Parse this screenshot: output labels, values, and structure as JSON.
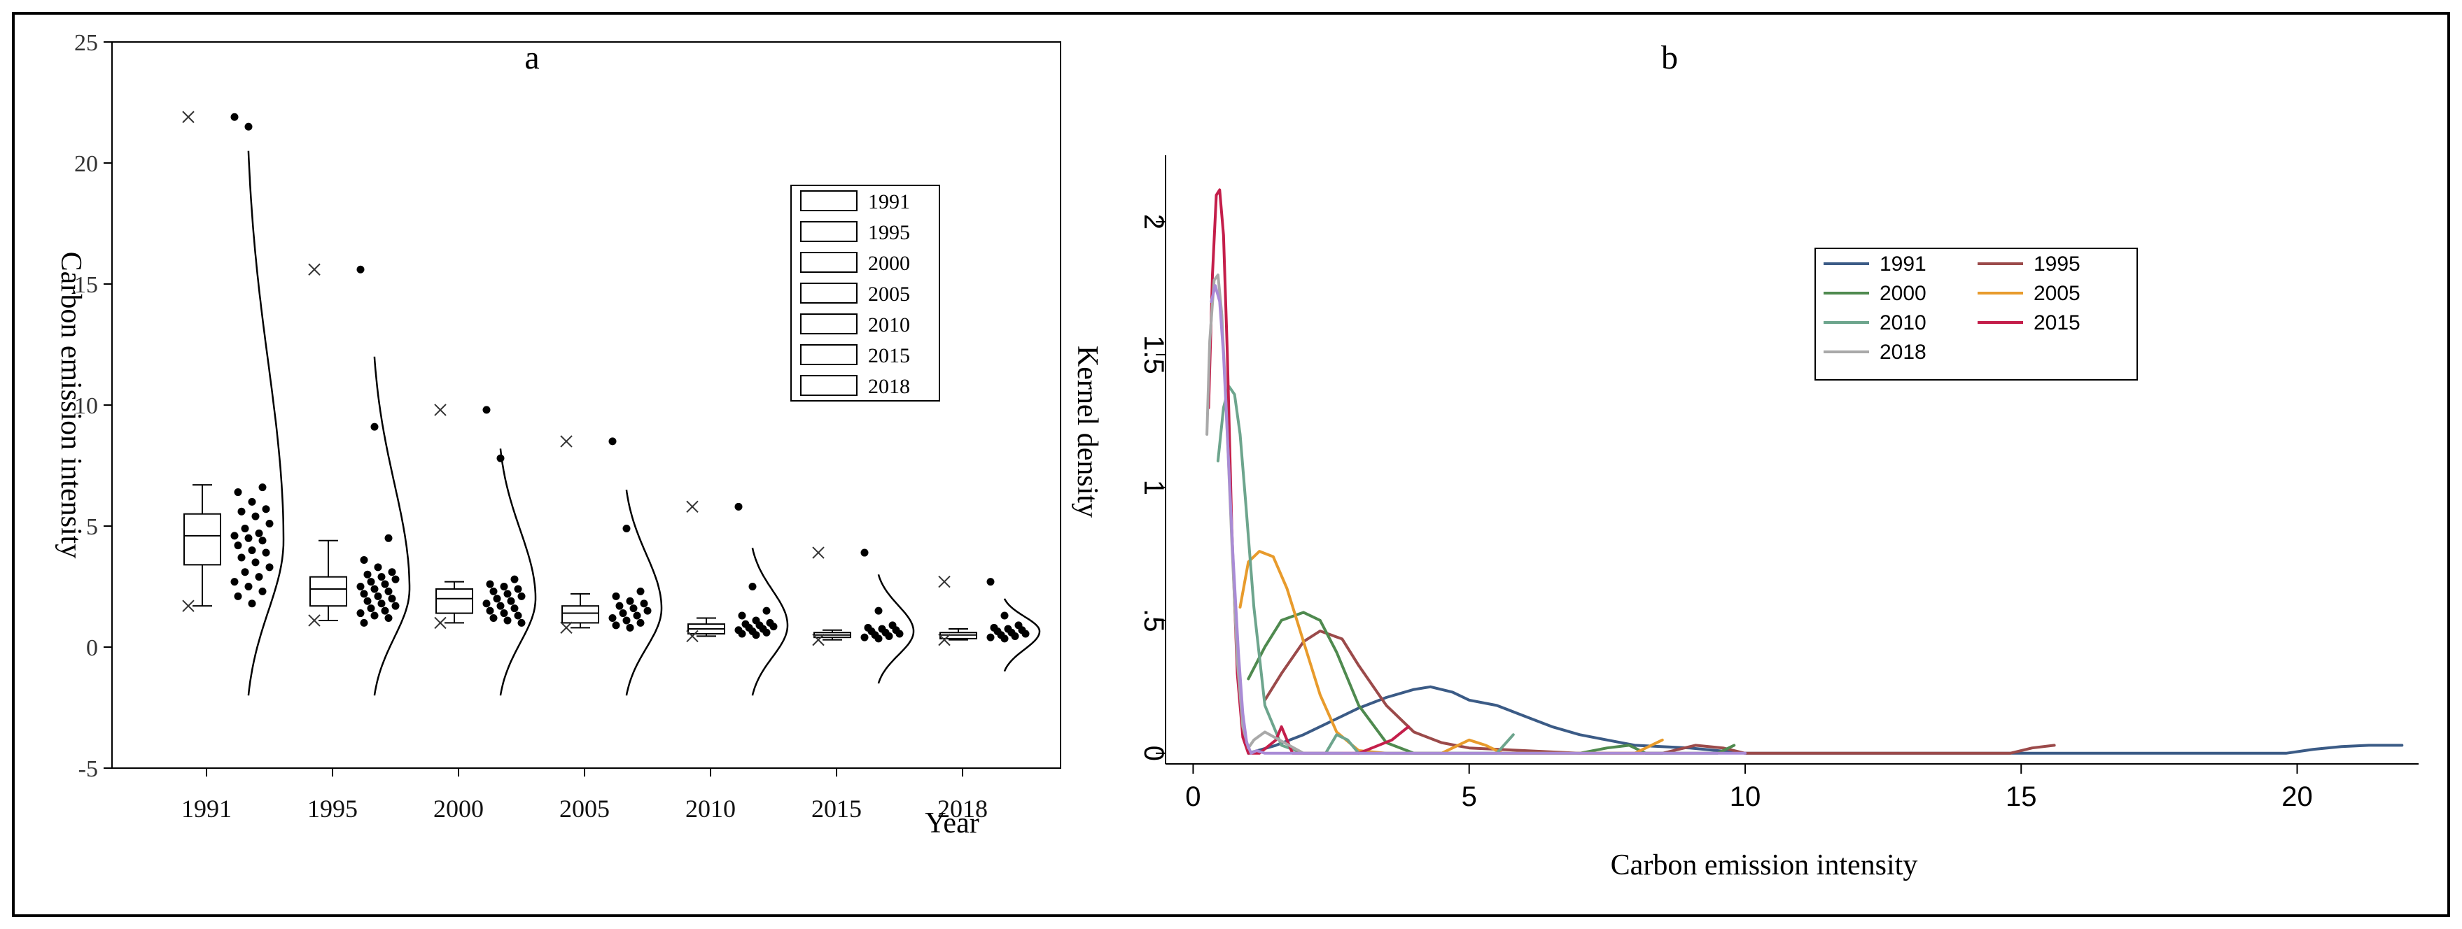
{
  "chart_data": [
    {
      "id": "a",
      "type": "box-violin",
      "panel_label": "a",
      "ylabel": "Carbon emission intensity",
      "xlabel": "Year",
      "ylim": [
        -5,
        25
      ],
      "yticks": [
        -5,
        0,
        5,
        10,
        15,
        20,
        25
      ],
      "categories": [
        "1991",
        "1995",
        "2000",
        "2005",
        "2010",
        "2015",
        "2018"
      ],
      "legend": {
        "position": "top-right",
        "entries": [
          "1991",
          "1995",
          "2000",
          "2005",
          "2010",
          "2015",
          "2018"
        ]
      },
      "groups": [
        {
          "year": "1991",
          "box": {
            "whisker_low": 1.7,
            "q1": 3.4,
            "median": 4.6,
            "q3": 5.5,
            "whisker_high": 6.7
          },
          "outlier_x": 21.9,
          "points": [
            21.9,
            21.5,
            6.6,
            6.4,
            6.0,
            5.7,
            5.6,
            5.4,
            5.1,
            4.9,
            4.7,
            4.6,
            4.5,
            4.4,
            4.2,
            4.0,
            3.9,
            3.7,
            3.5,
            3.3,
            3.1,
            2.9,
            2.7,
            2.5,
            2.3,
            2.1,
            1.8
          ],
          "density_range": [
            -2,
            20.5
          ]
        },
        {
          "year": "1995",
          "box": {
            "whisker_low": 1.1,
            "q1": 1.7,
            "median": 2.4,
            "q3": 2.9,
            "whisker_high": 4.4
          },
          "outlier_x": 15.6,
          "points": [
            15.6,
            9.1,
            4.5,
            3.6,
            3.3,
            3.1,
            3.0,
            2.9,
            2.8,
            2.7,
            2.6,
            2.5,
            2.4,
            2.3,
            2.2,
            2.1,
            2.0,
            1.9,
            1.8,
            1.7,
            1.6,
            1.5,
            1.4,
            1.3,
            1.2,
            1.0
          ],
          "density_range": [
            -2,
            12
          ]
        },
        {
          "year": "2000",
          "box": {
            "whisker_low": 1.0,
            "q1": 1.4,
            "median": 2.0,
            "q3": 2.4,
            "whisker_high": 2.7
          },
          "outlier_x": 9.8,
          "points": [
            9.8,
            7.8,
            2.8,
            2.6,
            2.5,
            2.4,
            2.3,
            2.2,
            2.1,
            2.0,
            1.9,
            1.8,
            1.7,
            1.6,
            1.5,
            1.4,
            1.3,
            1.2,
            1.1,
            1.0
          ],
          "density_range": [
            -2,
            8.2
          ]
        },
        {
          "year": "2005",
          "box": {
            "whisker_low": 0.8,
            "q1": 1.0,
            "median": 1.4,
            "q3": 1.7,
            "whisker_high": 2.2
          },
          "outlier_x": 8.5,
          "points": [
            8.5,
            4.9,
            2.3,
            2.1,
            1.9,
            1.8,
            1.7,
            1.6,
            1.5,
            1.4,
            1.3,
            1.2,
            1.1,
            1.0,
            0.9,
            0.8
          ],
          "density_range": [
            -2,
            6.5
          ]
        },
        {
          "year": "2010",
          "box": {
            "whisker_low": 0.45,
            "q1": 0.55,
            "median": 0.75,
            "q3": 0.95,
            "whisker_high": 1.2
          },
          "outlier_x": 5.8,
          "points": [
            5.8,
            2.5,
            1.5,
            1.3,
            1.1,
            1.0,
            0.95,
            0.9,
            0.85,
            0.8,
            0.75,
            0.7,
            0.65,
            0.6,
            0.55,
            0.5
          ],
          "density_range": [
            -2,
            4.1
          ]
        },
        {
          "year": "2015",
          "box": {
            "whisker_low": 0.3,
            "q1": 0.4,
            "median": 0.5,
            "q3": 0.6,
            "whisker_high": 0.7
          },
          "outlier_x": 3.9,
          "points": [
            3.9,
            1.5,
            0.9,
            0.8,
            0.75,
            0.7,
            0.65,
            0.6,
            0.55,
            0.5,
            0.45,
            0.4,
            0.35
          ],
          "density_range": [
            -1.5,
            3.0
          ]
        },
        {
          "year": "2018",
          "box": {
            "whisker_low": 0.3,
            "q1": 0.35,
            "median": 0.5,
            "q3": 0.6,
            "whisker_high": 0.75
          },
          "outlier_x": 2.7,
          "points": [
            2.7,
            1.3,
            0.9,
            0.8,
            0.75,
            0.7,
            0.65,
            0.6,
            0.55,
            0.5,
            0.45,
            0.4,
            0.35
          ],
          "density_range": [
            -1,
            2.0
          ]
        }
      ]
    },
    {
      "id": "b",
      "type": "line",
      "panel_label": "b",
      "xlabel": "Carbon emission intensity",
      "ylabel": "Kernel density",
      "xlim": [
        -0.5,
        22.2
      ],
      "ylim": [
        -0.04,
        2.25
      ],
      "xticks": [
        0,
        5,
        10,
        15,
        20
      ],
      "xtick_labels": [
        "0",
        "5",
        "10",
        "15",
        "20"
      ],
      "yticks": [
        0,
        0.5,
        1,
        1.5,
        2
      ],
      "ytick_labels": [
        "0",
        ".5",
        "1",
        "1.5",
        "2"
      ],
      "legend": {
        "position": "top-right",
        "columns": 2
      },
      "series": [
        {
          "name": "1991",
          "color": "#3b5b86",
          "x": [
            1.0,
            1.5,
            2.0,
            2.5,
            3.0,
            3.5,
            4.0,
            4.3,
            4.7,
            5.0,
            5.5,
            6.0,
            6.5,
            7.0,
            7.5,
            8.0,
            9.0,
            10.0,
            12.0,
            15.0,
            18.0,
            19.8,
            20.3,
            20.8,
            21.3,
            21.9
          ],
          "y": [
            0.0,
            0.03,
            0.07,
            0.12,
            0.17,
            0.21,
            0.24,
            0.25,
            0.23,
            0.2,
            0.18,
            0.14,
            0.1,
            0.07,
            0.05,
            0.03,
            0.02,
            0.0,
            0.0,
            0.0,
            0.0,
            0.0,
            0.015,
            0.025,
            0.03,
            0.03
          ]
        },
        {
          "name": "1995",
          "color": "#9b4a4a",
          "x": [
            1.3,
            1.6,
            2.0,
            2.3,
            2.7,
            3.0,
            3.5,
            4.0,
            4.5,
            5.0,
            6.0,
            7.0,
            8.5,
            9.1,
            9.6,
            10.0,
            12.0,
            14.8,
            15.2,
            15.6
          ],
          "y": [
            0.2,
            0.3,
            0.42,
            0.46,
            0.43,
            0.33,
            0.18,
            0.08,
            0.04,
            0.02,
            0.01,
            0.0,
            0.0,
            0.03,
            0.02,
            0.0,
            0.0,
            0.0,
            0.02,
            0.03
          ]
        },
        {
          "name": "2000",
          "color": "#4f8a4f",
          "x": [
            1.0,
            1.3,
            1.6,
            2.0,
            2.3,
            2.6,
            3.0,
            3.5,
            4.0,
            5.0,
            7.0,
            7.5,
            7.9,
            8.2,
            9.5,
            9.8
          ],
          "y": [
            0.28,
            0.4,
            0.5,
            0.53,
            0.5,
            0.38,
            0.18,
            0.04,
            0.0,
            0.0,
            0.0,
            0.02,
            0.03,
            0.0,
            0.0,
            0.03
          ]
        },
        {
          "name": "2005",
          "color": "#e89b2c",
          "x": [
            0.85,
            1.0,
            1.2,
            1.45,
            1.7,
            2.0,
            2.3,
            2.6,
            3.0,
            3.5,
            4.5,
            4.8,
            5.0,
            5.3,
            5.6,
            6.0,
            8.0,
            8.3,
            8.5
          ],
          "y": [
            0.55,
            0.72,
            0.76,
            0.74,
            0.62,
            0.42,
            0.22,
            0.08,
            0.01,
            0.0,
            0.0,
            0.03,
            0.05,
            0.03,
            0.0,
            0.0,
            0.0,
            0.03,
            0.05
          ]
        },
        {
          "name": "2010",
          "color": "#6da58d",
          "x": [
            0.45,
            0.55,
            0.65,
            0.75,
            0.85,
            0.95,
            1.1,
            1.3,
            1.6,
            2.0,
            2.4,
            2.6,
            2.8,
            3.0,
            5.5,
            5.8
          ],
          "y": [
            1.1,
            1.3,
            1.38,
            1.35,
            1.2,
            0.95,
            0.55,
            0.18,
            0.03,
            0.0,
            0.0,
            0.07,
            0.05,
            0.0,
            0.0,
            0.07
          ]
        },
        {
          "name": "2015",
          "color": "#c41e4a",
          "x": [
            0.28,
            0.35,
            0.42,
            0.48,
            0.55,
            0.62,
            0.7,
            0.8,
            0.9,
            1.0,
            1.2,
            1.5,
            1.6,
            1.8,
            2.2,
            3.0,
            3.6,
            3.9
          ],
          "y": [
            1.3,
            1.8,
            2.1,
            2.12,
            1.95,
            1.5,
            0.85,
            0.3,
            0.06,
            0.0,
            0.0,
            0.05,
            0.1,
            0.0,
            0.0,
            0.0,
            0.05,
            0.1
          ]
        },
        {
          "name": "2018",
          "color": "#a9a9a9",
          "x": [
            0.25,
            0.3,
            0.38,
            0.45,
            0.52,
            0.6,
            0.7,
            0.8,
            0.9,
            1.0,
            1.1,
            1.3,
            2.0,
            2.7
          ],
          "y": [
            1.2,
            1.55,
            1.78,
            1.8,
            1.65,
            1.3,
            0.8,
            0.35,
            0.1,
            0.02,
            0.05,
            0.08,
            0.0,
            0.0
          ]
        },
        {
          "name": "",
          "color": "#a98bd6",
          "x": [
            0.33,
            0.4,
            0.48,
            0.55,
            0.63,
            0.72,
            0.82,
            0.9,
            0.97,
            1.05,
            1.15,
            1.3,
            2.0,
            5.0,
            10.0
          ],
          "y": [
            1.7,
            1.76,
            1.7,
            1.5,
            1.15,
            0.75,
            0.38,
            0.15,
            0.04,
            0.0,
            0.01,
            0.0,
            0.0,
            0.0,
            0.0
          ]
        }
      ]
    }
  ]
}
